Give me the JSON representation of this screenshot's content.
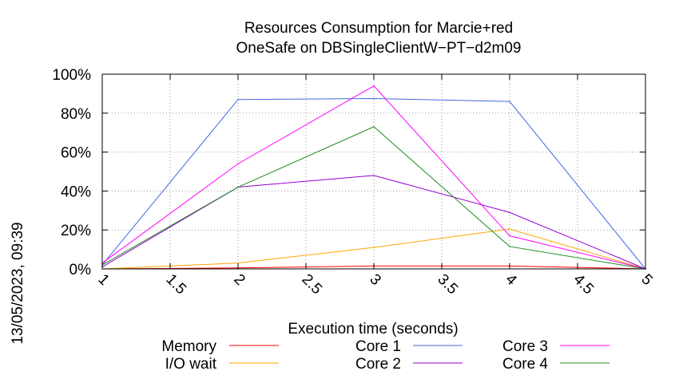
{
  "timestamp": "13/05/2023, 09:39",
  "chart_data": {
    "type": "line",
    "title": "Resources Consumption for Marcie+red",
    "subtitle": "OneSafe on DBSingleClientW−PT−d2m09",
    "xlabel": "Execution time (seconds)",
    "ylabel": "",
    "xlim": [
      1,
      5
    ],
    "ylim": [
      0,
      100
    ],
    "x_ticks": [
      1,
      1.5,
      2,
      2.5,
      3,
      3.5,
      4,
      4.5,
      5
    ],
    "x_tick_labels": [
      "1",
      "1.5",
      "2",
      "2.5",
      "3",
      "3.5",
      "4",
      "4.5",
      "5"
    ],
    "y_ticks": [
      0,
      20,
      40,
      60,
      80,
      100
    ],
    "y_tick_labels": [
      "0%",
      "20%",
      "40%",
      "60%",
      "80%",
      "100%"
    ],
    "grid": true,
    "legend_position": "bottom",
    "x": [
      1,
      2,
      3,
      4,
      5
    ],
    "series": [
      {
        "name": "Memory",
        "color": "#ff0000",
        "values": [
          0,
          0.5,
          1.5,
          1.5,
          0
        ]
      },
      {
        "name": "I/O wait",
        "color": "#ffa500",
        "values": [
          0,
          3,
          11,
          20.5,
          0
        ]
      },
      {
        "name": "Core 1",
        "color": "#4169e1",
        "values": [
          2,
          87,
          87.5,
          86,
          0
        ]
      },
      {
        "name": "Core 2",
        "color": "#9400d3",
        "values": [
          1,
          42,
          48,
          29,
          0
        ]
      },
      {
        "name": "Core 3",
        "color": "#ff00ff",
        "values": [
          3,
          54,
          94,
          17,
          0
        ]
      },
      {
        "name": "Core 4",
        "color": "#228b22",
        "values": [
          2,
          42,
          73,
          11.5,
          0
        ]
      }
    ]
  }
}
